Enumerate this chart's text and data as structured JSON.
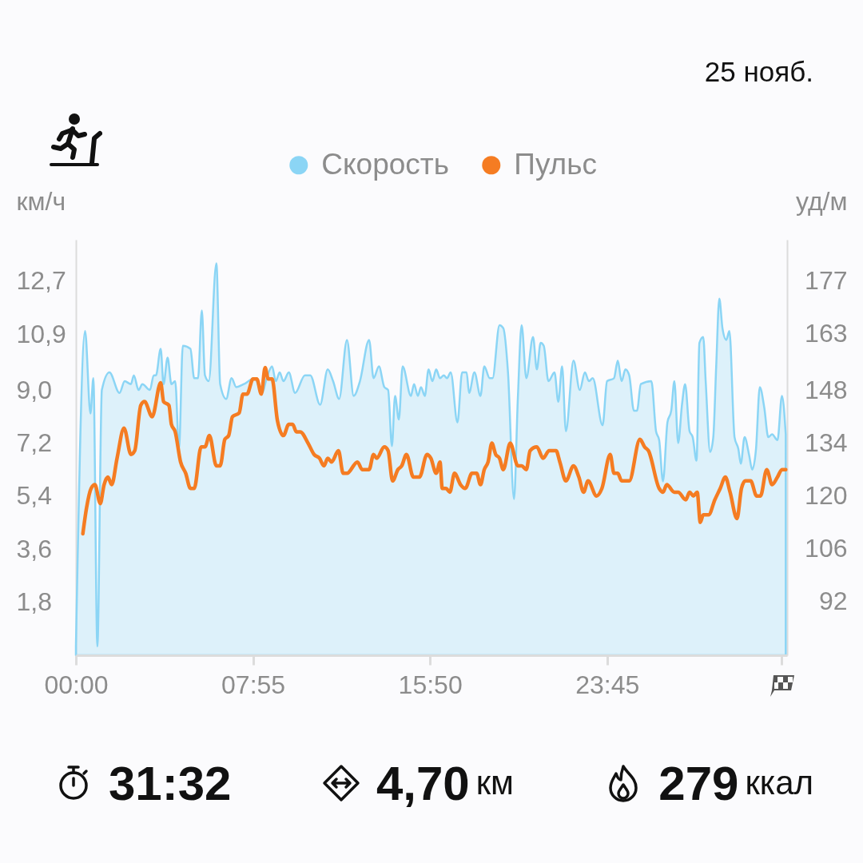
{
  "chart_data": {
    "type": "area",
    "ylabel": "км/ч",
    "y2label": "уд/м",
    "xlim": [
      0,
      31.8
    ],
    "xticks": [
      {
        "value": 0,
        "label": "00:00"
      },
      {
        "value": 7.9167,
        "label": "07:55"
      },
      {
        "value": 15.8333,
        "label": "15:50"
      },
      {
        "value": 23.75,
        "label": "23:45"
      },
      {
        "value": 31.5333,
        "label": null
      }
    ],
    "ylim": [
      0,
      14.1
    ],
    "yticks": [
      {
        "value": 1.8,
        "label": "1,8"
      },
      {
        "value": 3.6,
        "label": "3,6"
      },
      {
        "value": 5.4,
        "label": "5,4"
      },
      {
        "value": 7.2,
        "label": "7,2"
      },
      {
        "value": 9.0,
        "label": "9,0"
      },
      {
        "value": 10.9,
        "label": "10,9"
      },
      {
        "value": 12.7,
        "label": "12,7"
      }
    ],
    "y2lim": [
      77.8,
      187.9
    ],
    "y2ticks": [
      92,
      106,
      120,
      134,
      148,
      163,
      177
    ],
    "legend": "top",
    "annotations": [
      "25 нояб.",
      "31:32",
      "4,70",
      "км",
      "279",
      "ккал"
    ],
    "series": [
      {
        "name": "Скорость",
        "color": "#8bd5f5",
        "x": [
          0,
          0.41,
          0.65,
          0.78,
          0.96,
          1.16,
          1.5,
          1.95,
          2.18,
          2.46,
          2.59,
          2.8,
          2.97,
          3.31,
          3.48,
          3.58,
          3.79,
          3.92,
          4.1,
          4.27,
          4.44,
          4.61,
          4.78,
          5.12,
          5.29,
          5.46,
          5.63,
          5.77,
          5.94,
          6.28,
          6.45,
          6.72,
          6.96,
          7.17,
          7.51,
          7.99,
          8.33,
          8.53,
          8.77,
          8.94,
          9.11,
          9.28,
          9.52,
          9.8,
          10.24,
          10.48,
          10.92,
          11.26,
          11.5,
          11.77,
          12.12,
          12.42,
          12.7,
          13.11,
          13.31,
          13.55,
          13.79,
          13.96,
          14.13,
          14.27,
          14.44,
          14.61,
          14.98,
          15.12,
          15.29,
          15.43,
          15.6,
          15.77,
          15.94,
          16.11,
          16.28,
          16.45,
          16.59,
          16.76,
          17.06,
          17.27,
          17.47,
          17.58,
          17.82,
          18.09,
          18.26,
          18.5,
          18.63,
          18.94,
          19.11,
          19.32,
          19.59,
          19.76,
          19.93,
          20.14,
          20.44,
          20.61,
          20.78,
          20.92,
          21.13,
          21.4,
          21.57,
          21.74,
          21.91,
          22.25,
          22.53,
          22.76,
          22.94,
          23.11,
          23.55,
          23.75,
          24.06,
          24.23,
          24.4,
          24.57,
          24.74,
          24.95,
          25.09,
          25.26,
          25.73,
          25.94,
          26.08,
          26.25,
          26.45,
          26.62,
          26.76,
          26.93,
          27.1,
          27.24,
          27.44,
          27.58,
          27.75,
          27.88,
          28.05,
          28.16,
          28.36,
          28.5,
          28.63,
          28.77,
          28.91,
          29.08,
          29.22,
          29.45,
          29.62,
          29.73,
          29.9,
          30.1,
          30.24,
          30.41,
          30.58,
          30.78,
          30.96,
          31.13,
          31.37,
          31.57,
          31.74
        ],
        "values": [
          0.3,
          11.0,
          8.2,
          9.4,
          0.3,
          9.0,
          9.6,
          8.9,
          9.3,
          9.2,
          9.5,
          9.0,
          9.2,
          9.0,
          9.5,
          9.5,
          10.4,
          9.2,
          10.1,
          9.2,
          9.3,
          7.0,
          10.5,
          10.4,
          9.4,
          9.4,
          11.7,
          9.5,
          9.3,
          13.3,
          9.2,
          8.7,
          9.4,
          9.1,
          9.2,
          9.4,
          8.9,
          9.4,
          9.8,
          9.3,
          9.6,
          9.3,
          9.6,
          8.9,
          9.5,
          9.5,
          8.5,
          9.7,
          9.3,
          8.7,
          10.7,
          8.8,
          9.3,
          10.7,
          9.4,
          9.8,
          9.1,
          9.0,
          7.1,
          8.8,
          8.0,
          9.8,
          8.8,
          9.2,
          8.8,
          9.1,
          8.8,
          9.7,
          9.3,
          9.7,
          9.4,
          9.5,
          9.4,
          9.6,
          7.9,
          9.6,
          9.6,
          8.9,
          9.6,
          8.8,
          9.8,
          9.4,
          9.4,
          11.2,
          11.1,
          9.6,
          5.3,
          8.7,
          11.2,
          9.4,
          10.8,
          9.7,
          10.6,
          10.5,
          9.3,
          9.6,
          8.6,
          9.8,
          7.6,
          10.0,
          9.0,
          9.6,
          9.3,
          9.4,
          7.8,
          9.3,
          9.4,
          10.0,
          9.3,
          9.7,
          9.5,
          8.3,
          8.3,
          9.2,
          9.3,
          7.6,
          7.3,
          5.9,
          7.9,
          8.3,
          9.3,
          7.2,
          8.5,
          9.2,
          7.6,
          7.4,
          6.6,
          10.6,
          10.8,
          9.3,
          6.9,
          7.4,
          9.8,
          12.1,
          11.1,
          10.7,
          11.0,
          7.4,
          7.0,
          6.5,
          7.4,
          6.8,
          6.3,
          7.0,
          9.1,
          8.4,
          7.4,
          7.5,
          7.3,
          8.8,
          7.5
        ]
      },
      {
        "name": "Пульс",
        "type": "line",
        "axis": "y2",
        "color": "#f57c22",
        "x": [
          0.31,
          0.48,
          0.68,
          0.85,
          1.09,
          1.26,
          1.43,
          1.6,
          1.84,
          2.15,
          2.46,
          2.63,
          2.9,
          3.07,
          3.41,
          3.79,
          3.92,
          4.16,
          4.27,
          4.44,
          4.68,
          4.91,
          5.12,
          5.29,
          5.6,
          5.77,
          5.97,
          6.28,
          6.45,
          6.66,
          6.83,
          7.0,
          7.3,
          7.47,
          7.65,
          7.92,
          8.09,
          8.29,
          8.46,
          8.6,
          8.77,
          9.01,
          9.28,
          9.52,
          9.69,
          9.86,
          10.03,
          10.38,
          10.65,
          10.89,
          11.09,
          11.26,
          11.43,
          11.74,
          11.95,
          12.12,
          12.59,
          12.8,
          13.11,
          13.31,
          13.45,
          13.79,
          13.96,
          14.16,
          14.4,
          14.57,
          14.78,
          15.09,
          15.36,
          15.7,
          15.87,
          16.11,
          16.28,
          16.38,
          16.55,
          16.72,
          16.93,
          17.2,
          17.41,
          17.71,
          17.92,
          18.09,
          18.26,
          18.43,
          18.6,
          18.77,
          18.94,
          19.11,
          19.42,
          19.76,
          19.93,
          20.14,
          20.31,
          20.61,
          20.89,
          21.16,
          21.47,
          21.64,
          21.91,
          22.25,
          22.49,
          22.7,
          22.9,
          23.28,
          23.52,
          23.89,
          24.06,
          24.23,
          24.4,
          24.74,
          25.22,
          25.43,
          25.6,
          26.08,
          26.25,
          26.42,
          26.76,
          26.93,
          27.27,
          27.44,
          27.61,
          27.78,
          27.92,
          28.05,
          28.29,
          28.57,
          28.81,
          29.04,
          29.25,
          29.56,
          29.76,
          29.93,
          30.17,
          30.44,
          30.61,
          30.89,
          31.13,
          31.37,
          31.57,
          31.74
        ],
        "values": [
          110,
          117,
          122,
          123,
          118,
          123,
          125,
          123,
          130,
          138,
          131,
          132,
          144,
          145,
          141,
          150,
          145,
          144,
          139,
          137,
          129,
          126,
          122,
          122,
          133,
          133,
          136,
          128,
          128,
          135,
          136,
          141,
          142,
          147,
          147,
          151,
          151,
          147,
          154,
          151,
          151,
          140,
          136,
          139,
          139,
          137,
          137,
          134,
          131,
          130,
          128,
          130,
          129,
          132,
          126,
          126,
          129,
          127,
          127,
          131,
          130,
          133,
          132,
          124,
          127,
          128,
          131,
          125,
          125,
          131,
          130,
          126,
          129,
          122,
          122,
          121,
          126,
          123,
          122,
          126,
          126,
          123,
          127,
          129,
          134,
          131,
          130,
          127,
          134,
          128,
          128,
          127,
          132,
          133,
          130,
          132,
          132,
          129,
          124,
          128,
          125,
          121,
          124,
          120,
          122,
          131,
          126,
          126,
          124,
          124,
          135,
          133,
          132,
          122,
          121,
          123,
          121,
          121,
          119,
          121,
          120,
          121,
          113,
          115,
          115,
          119,
          122,
          125,
          121,
          114,
          122,
          124,
          124,
          120,
          120,
          127,
          123,
          125,
          127,
          127
        ]
      }
    ]
  }
}
